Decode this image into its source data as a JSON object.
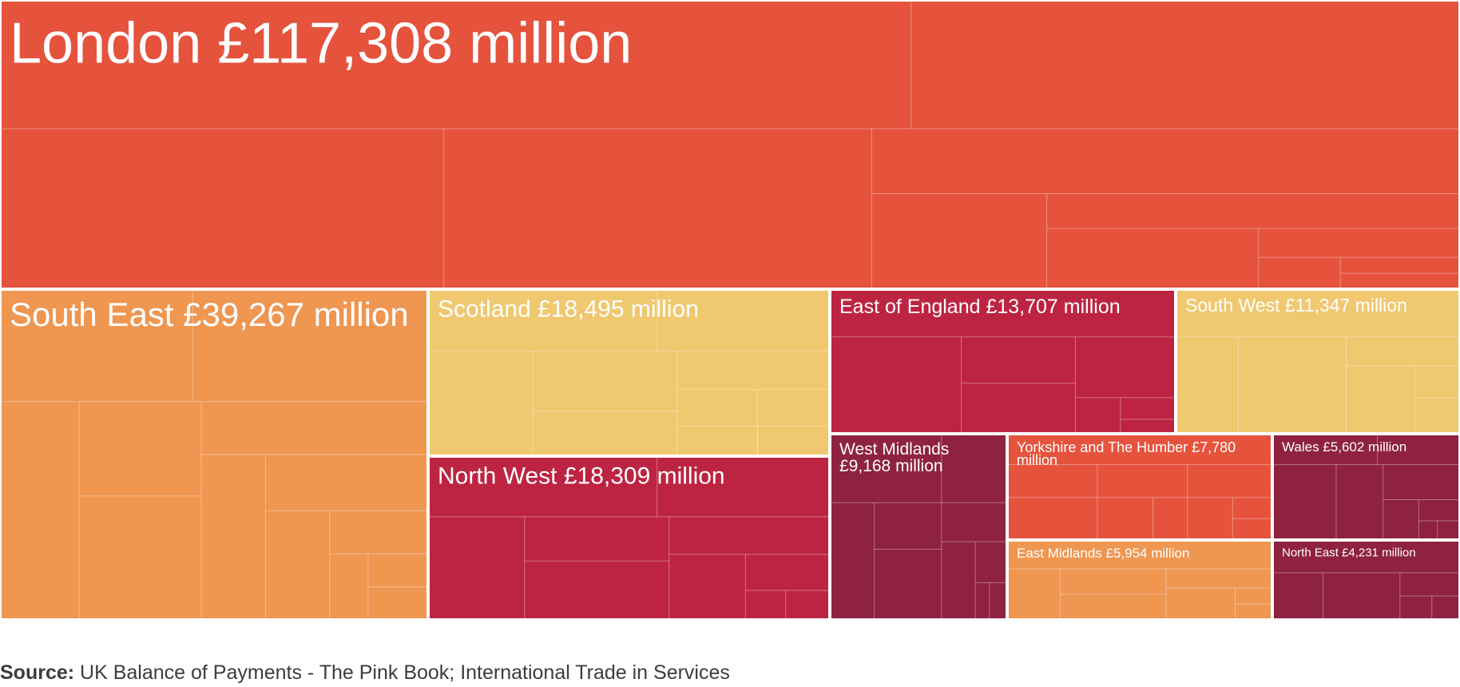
{
  "chart_data": {
    "type": "treemap",
    "unit": "£ million",
    "regions": [
      {
        "name": "London",
        "value": 117308,
        "label": "London £117,308 million",
        "color": "#e5533d"
      },
      {
        "name": "South East",
        "value": 39267,
        "label": "South East £39,267 million",
        "color": "#ef9651"
      },
      {
        "name": "Scotland",
        "value": 18495,
        "label": "Scotland £18,495 million",
        "color": "#f0c870"
      },
      {
        "name": "North West",
        "value": 18309,
        "label": "North West £18,309 million",
        "color": "#bd2442"
      },
      {
        "name": "East of England",
        "value": 13707,
        "label": "East of England £13,707 million",
        "color": "#bd2442"
      },
      {
        "name": "South West",
        "value": 11347,
        "label": "South West £11,347 million",
        "color": "#f0c870"
      },
      {
        "name": "West Midlands",
        "value": 9168,
        "label": "West Midlands £9,168 million",
        "color": "#8e2240"
      },
      {
        "name": "Yorkshire and The Humber",
        "value": 7780,
        "label": "Yorkshire and The Humber £7,780 million",
        "color": "#e5533d"
      },
      {
        "name": "Wales",
        "value": 5602,
        "label": "Wales £5,602 million",
        "color": "#8e2240"
      },
      {
        "name": "East Midlands",
        "value": 5954,
        "label": "East Midlands £5,954 million",
        "color": "#ef9651"
      },
      {
        "name": "North East",
        "value": 4231,
        "label": "North East £4,231 million",
        "color": "#8e2240"
      }
    ]
  },
  "source": {
    "label": "Source:",
    "text": " UK Balance of Payments - The Pink Book; International Trade in Services"
  }
}
